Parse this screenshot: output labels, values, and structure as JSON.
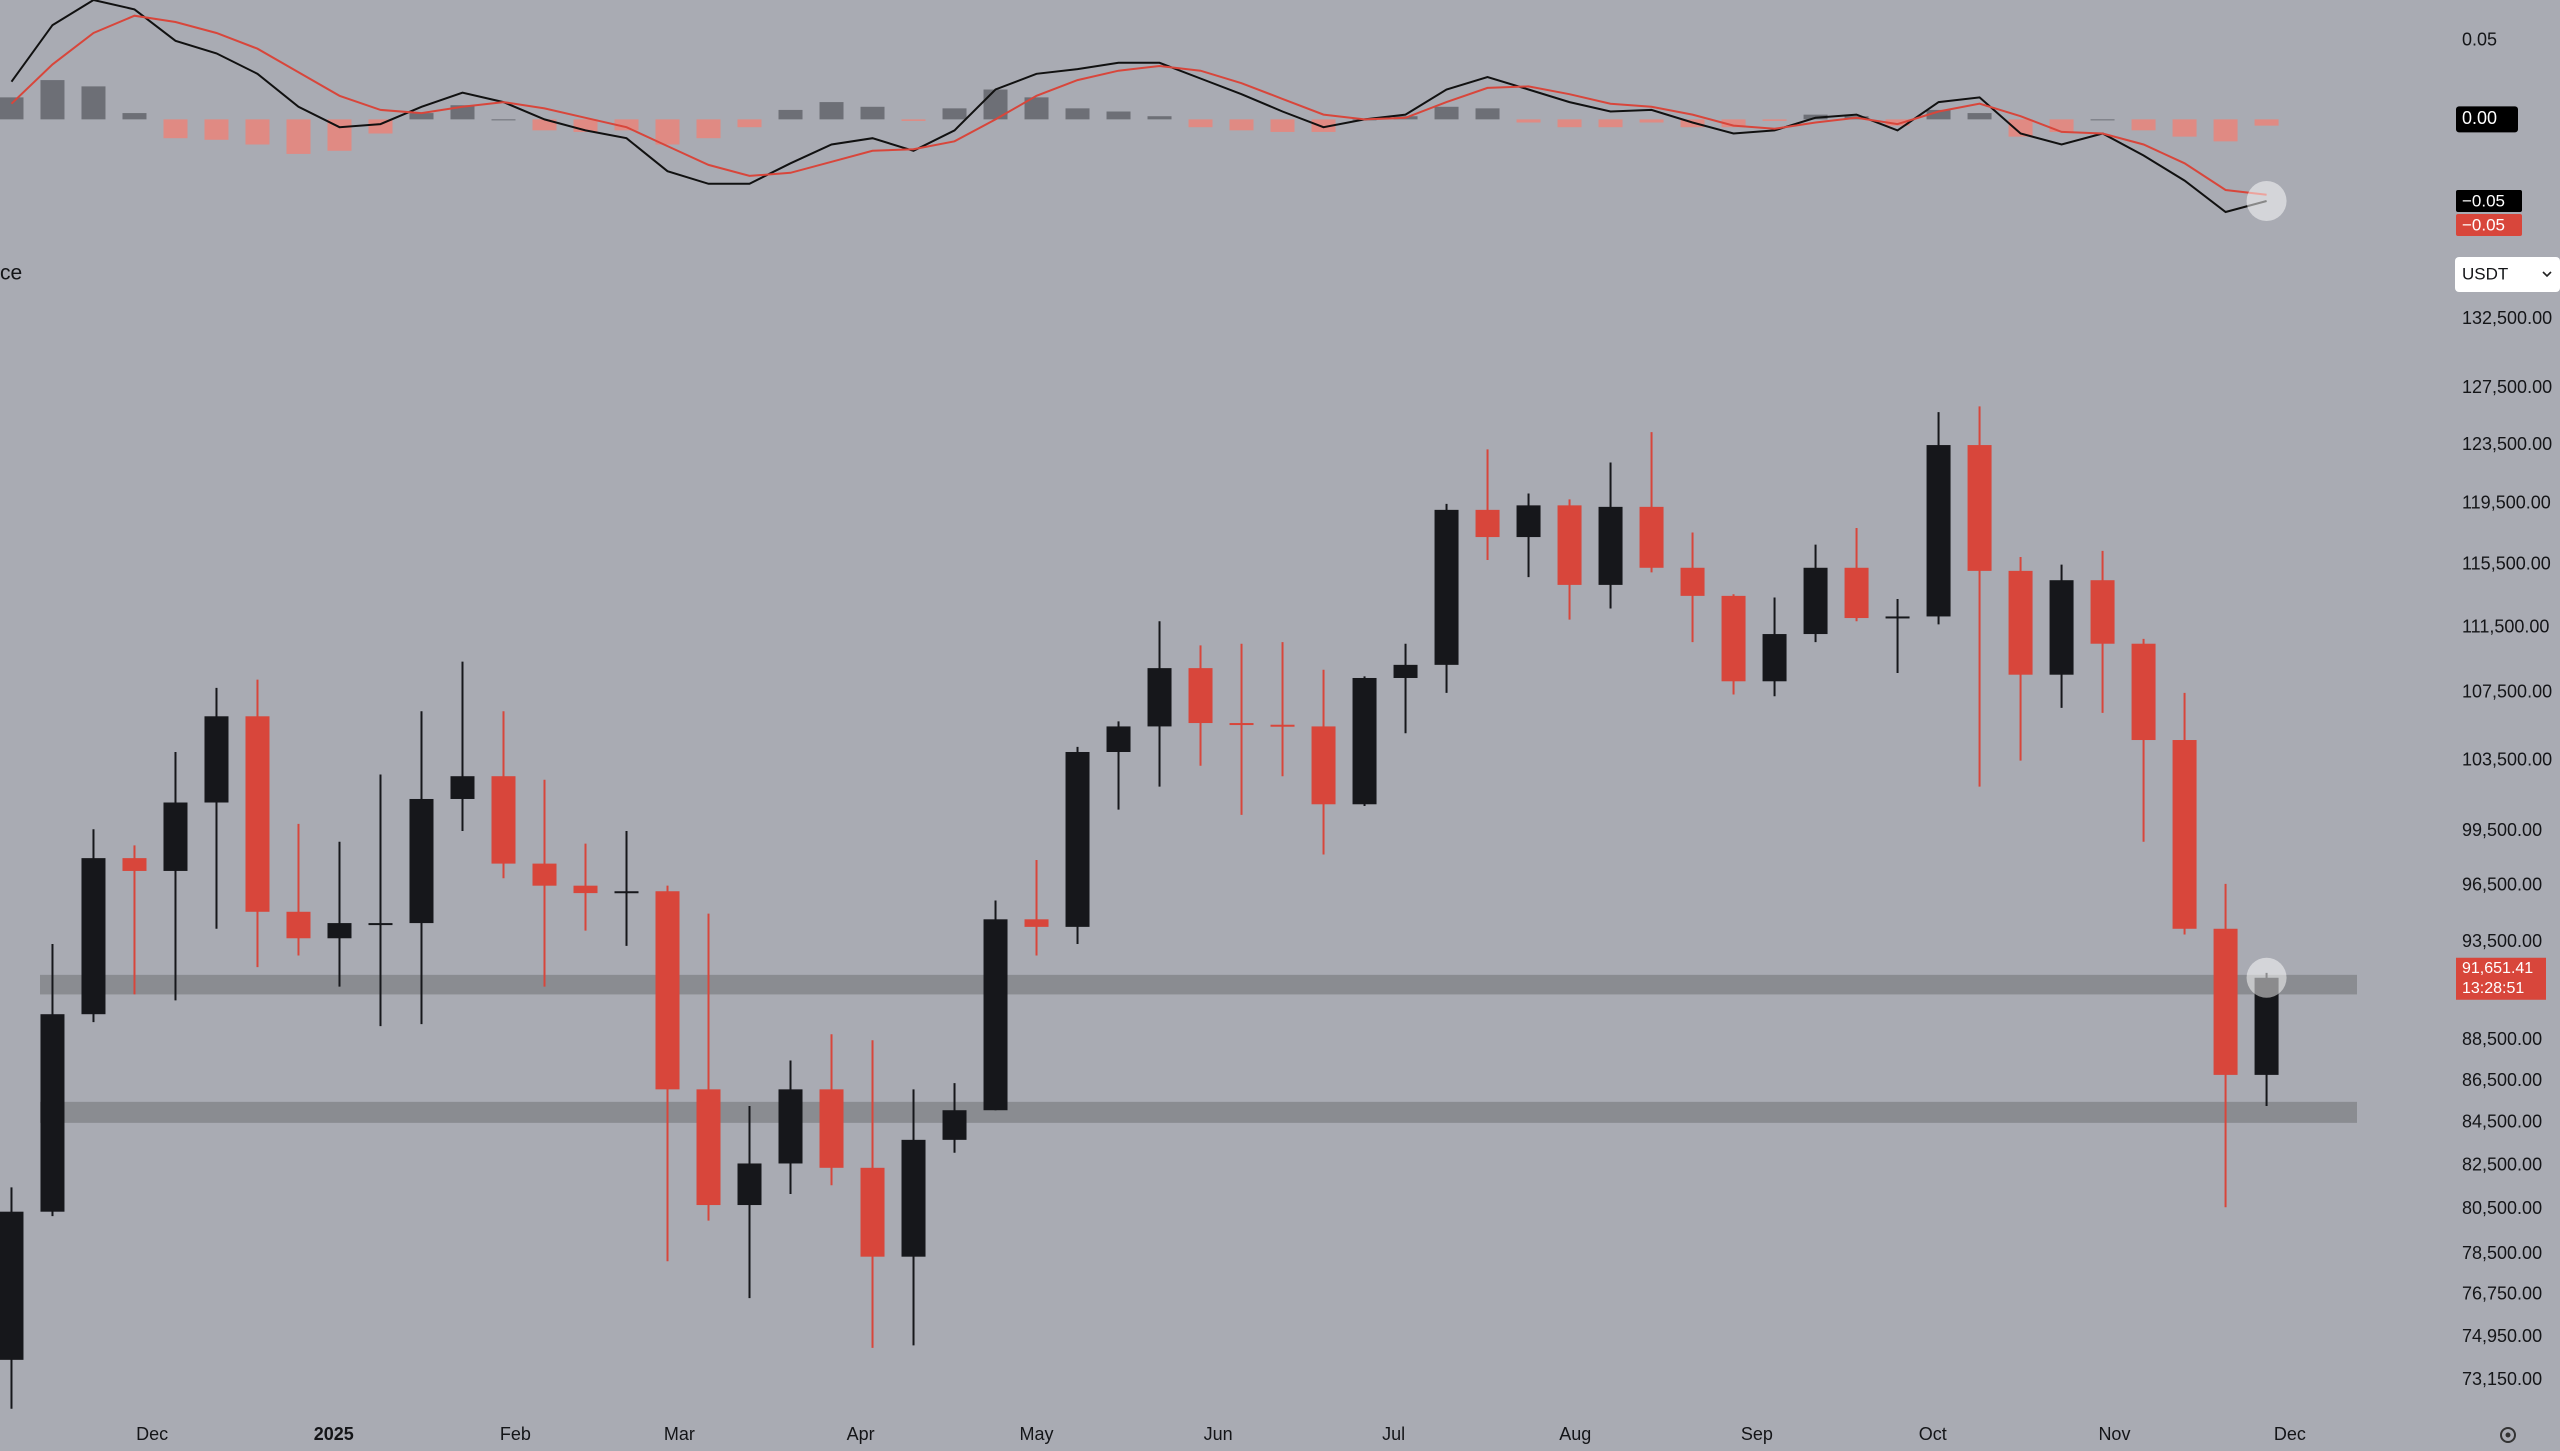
{
  "chart_data": [
    {
      "type": "macd",
      "xlim": [
        -0.28,
        59.23
      ],
      "ylim": [
        -0.08,
        0.076
      ],
      "yticks": [
        {
          "value": 0.05,
          "label": "0.05"
        },
        {
          "value": 0,
          "label": "0.00"
        }
      ],
      "series": [
        {
          "color": "#111111",
          "values": [
            0.024,
            0.06,
            0.076,
            0.07,
            0.05,
            0.042,
            0.029,
            0.008,
            -0.005,
            -0.003,
            0.008,
            0.017,
            0.011,
            0,
            -0.007,
            -0.012,
            -0.033,
            -0.041,
            -0.041,
            -0.028,
            -0.016,
            -0.012,
            -0.02,
            -0.007,
            0.019,
            0.029,
            0.032,
            0.036,
            0.036,
            0.026,
            0.016,
            0.005,
            -0.005,
            0,
            0.003,
            0.019,
            0.027,
            0.019,
            0.011,
            0.005,
            0.006,
            -0.002,
            -0.009,
            -0.007,
            0.001,
            0.003,
            -0.007,
            0.011,
            0.014,
            -0.009,
            -0.016,
            -0.009,
            -0.023,
            -0.039,
            -0.059,
            -0.052
          ],
          "last_label": {
            "value": -0.052,
            "label": "−0.05"
          }
        },
        {
          "color": "#d8463b",
          "values": [
            0.01,
            0.035,
            0.055,
            0.066,
            0.062,
            0.055,
            0.045,
            0.03,
            0.015,
            0.006,
            0.004,
            0.008,
            0.011,
            0.007,
            0.001,
            -0.005,
            -0.017,
            -0.029,
            -0.036,
            -0.034,
            -0.027,
            -0.02,
            -0.019,
            -0.014,
            0,
            0.015,
            0.025,
            0.031,
            0.034,
            0.031,
            0.023,
            0.013,
            0.003,
            0,
            0.001,
            0.011,
            0.02,
            0.021,
            0.016,
            0.01,
            0.008,
            0.003,
            -0.004,
            -0.006,
            -0.002,
            0.001,
            -0.003,
            0.005,
            0.01,
            0.002,
            -0.008,
            -0.009,
            -0.016,
            -0.028,
            -0.045,
            -0.048
          ],
          "last_label": {
            "value": -0.048,
            "label": "−0.05"
          }
        }
      ],
      "histogram": {
        "up_color": "#6d6f76",
        "down_color": "#e08a83",
        "values": [
          0.014,
          0.025,
          0.021,
          0.004,
          -0.012,
          -0.013,
          -0.016,
          -0.022,
          -0.02,
          -0.009,
          0.004,
          0.009,
          0,
          -0.007,
          -0.008,
          -0.007,
          -0.016,
          -0.012,
          -0.005,
          0.006,
          0.011,
          0.008,
          -0.001,
          0.007,
          0.019,
          0.014,
          0.007,
          0.005,
          0.002,
          -0.005,
          -0.007,
          -0.008,
          -0.008,
          0,
          0.002,
          0.008,
          0.007,
          -0.002,
          -0.005,
          -0.005,
          -0.002,
          -0.005,
          -0.005,
          -0.001,
          0.003,
          0.002,
          -0.004,
          0.006,
          0.004,
          -0.011,
          -0.008,
          0,
          -0.007,
          -0.011,
          -0.014,
          -0.004
        ]
      }
    },
    {
      "type": "candlestick",
      "title": "ce",
      "currency_selector": "USDT",
      "log_scale": true,
      "grid": false,
      "up_color": "#16171b",
      "down_color": "#d8463b",
      "zone_color": "#8a8c91",
      "xlim": [
        -0.28,
        59.23
      ],
      "ylim": [
        71830,
        134400
      ],
      "xticks": [
        {
          "value": 3.43,
          "label": "Dec"
        },
        {
          "value": 7.86,
          "label": "2025"
        },
        {
          "value": 12.29,
          "label": "Feb"
        },
        {
          "value": 16.29,
          "label": "Mar"
        },
        {
          "value": 20.71,
          "label": "Apr"
        },
        {
          "value": 25,
          "label": "May"
        },
        {
          "value": 29.43,
          "label": "Jun"
        },
        {
          "value": 33.71,
          "label": "Jul"
        },
        {
          "value": 38.14,
          "label": "Aug"
        },
        {
          "value": 42.57,
          "label": "Sep"
        },
        {
          "value": 46.86,
          "label": "Oct"
        },
        {
          "value": 51.29,
          "label": "Nov"
        },
        {
          "value": 55.57,
          "label": "Dec"
        }
      ],
      "yticks": [
        {
          "value": 132500,
          "label": "132,500.00"
        },
        {
          "value": 127500,
          "label": "127,500.00"
        },
        {
          "value": 123500,
          "label": "123,500.00"
        },
        {
          "value": 119500,
          "label": "119,500.00"
        },
        {
          "value": 115500,
          "label": "115,500.00"
        },
        {
          "value": 111500,
          "label": "111,500.00"
        },
        {
          "value": 107500,
          "label": "107,500.00"
        },
        {
          "value": 103500,
          "label": "103,500.00"
        },
        {
          "value": 99500,
          "label": "99,500.00"
        },
        {
          "value": 96500,
          "label": "96,500.00"
        },
        {
          "value": 93500,
          "label": "93,500.00"
        },
        {
          "value": 88500,
          "label": "88,500.00"
        },
        {
          "value": 86500,
          "label": "86,500.00"
        },
        {
          "value": 84500,
          "label": "84,500.00"
        },
        {
          "value": 82500,
          "label": "82,500.00"
        },
        {
          "value": 80500,
          "label": "80,500.00"
        },
        {
          "value": 78500,
          "label": "78,500.00"
        },
        {
          "value": 76750,
          "label": "76,750.00"
        },
        {
          "value": 74950,
          "label": "74,950.00"
        },
        {
          "value": 73150,
          "label": "73,150.00"
        }
      ],
      "open": [
        74000,
        80400,
        89800,
        98000,
        97300,
        101100,
        106100,
        95100,
        93700,
        94500,
        94500,
        101300,
        102600,
        97700,
        96500,
        96100,
        96200,
        86100,
        80700,
        82600,
        86100,
        82400,
        78400,
        83700,
        85100,
        94700,
        94300,
        104000,
        105500,
        109000,
        105700,
        105600,
        105500,
        101000,
        108400,
        109200,
        119100,
        117300,
        119400,
        114200,
        119300,
        115300,
        113500,
        108200,
        111100,
        115300,
        112100,
        112200,
        123500,
        115100,
        108600,
        114500,
        110500,
        104700,
        94200,
        86800
      ],
      "high": [
        81500,
        93400,
        99600,
        98700,
        104000,
        107800,
        108300,
        99900,
        98900,
        102700,
        106400,
        109400,
        106400,
        102400,
        98800,
        99500,
        96500,
        95000,
        85300,
        87500,
        88800,
        88500,
        86100,
        86400,
        95700,
        97900,
        104300,
        105800,
        111900,
        110400,
        110500,
        110600,
        108900,
        108500,
        110500,
        119500,
        123200,
        120200,
        119800,
        122300,
        124400,
        117600,
        113600,
        113400,
        116800,
        117900,
        113300,
        125800,
        126200,
        116000,
        115500,
        116400,
        110800,
        107500,
        96600,
        91900
      ],
      "low": [
        72000,
        80200,
        89400,
        90800,
        90500,
        94200,
        92200,
        92800,
        91200,
        89200,
        89300,
        99500,
        96900,
        91200,
        94100,
        93300,
        78200,
        80000,
        76600,
        81200,
        81600,
        74500,
        74600,
        83100,
        85100,
        92800,
        93400,
        100700,
        102000,
        103200,
        100400,
        102600,
        98200,
        100900,
        105100,
        107500,
        115800,
        114700,
        112000,
        112700,
        115000,
        110600,
        107400,
        107300,
        110600,
        111900,
        108700,
        111700,
        102000,
        103500,
        106600,
        106300,
        98900,
        93900,
        80600,
        85300
      ],
      "close": [
        80400,
        89800,
        98000,
        97300,
        101100,
        106100,
        95100,
        93700,
        94500,
        94500,
        101300,
        102600,
        97700,
        96500,
        96100,
        96200,
        86100,
        80700,
        82600,
        86100,
        82400,
        78400,
        83700,
        85100,
        94700,
        94300,
        104000,
        105500,
        109000,
        105700,
        105600,
        105500,
        101000,
        108400,
        109200,
        119100,
        117300,
        119400,
        114200,
        119300,
        115300,
        113500,
        108200,
        111100,
        115300,
        112100,
        112200,
        123500,
        115100,
        108600,
        114500,
        110500,
        104700,
        94200,
        86800,
        91651.41
      ],
      "zones": [
        [
          90800,
          91800
        ],
        [
          84500,
          85500
        ]
      ],
      "last_price": {
        "value": 91651.41,
        "label": "91,651.41"
      },
      "countdown": "13:28:51"
    }
  ]
}
